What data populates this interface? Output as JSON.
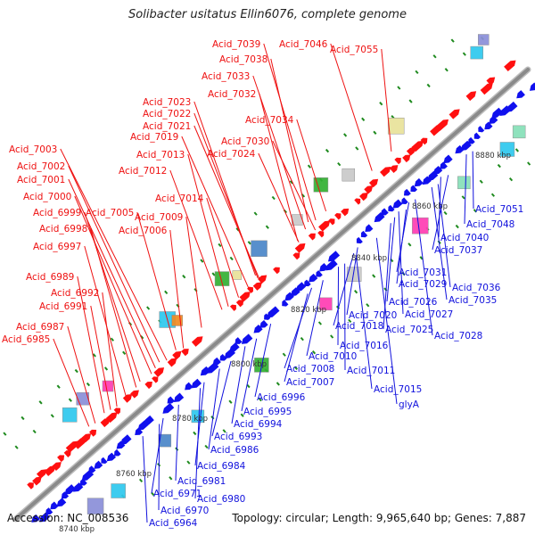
{
  "title": "Solibacter usitatus Ellin6076, complete genome",
  "footer": {
    "accession": "Accession: NC_008536",
    "stats": "Topology: circular; Length: 9,965,640 bp; Genes: 7,887"
  },
  "colors": {
    "forward_label": "#ee1111",
    "reverse_label": "#1111dd",
    "backbone": "#8a8a8a",
    "tick_marks": "#1e8a1e"
  },
  "scale_labels": [
    "8740 kbp",
    "8760 kbp",
    "8780 kbp",
    "8800 kbp",
    "8820 kbp",
    "8840 kbp",
    "8860 kbp",
    "8880 kbp"
  ],
  "forward_genes": [
    "Acid_7039",
    "Acid_7046",
    "Acid_7055",
    "Acid_7038",
    "Acid_7033",
    "Acid_7032",
    "Acid_7023",
    "Acid_7034",
    "Acid_7022",
    "Acid_7021",
    "Acid_7019",
    "Acid_7030",
    "Acid_7013",
    "Acid_7024",
    "Acid_7003",
    "Acid_7012",
    "Acid_7002",
    "Acid_7001",
    "Acid_7000",
    "Acid_7014",
    "Acid_6999",
    "Acid_7005",
    "Acid_7009",
    "Acid_6998",
    "Acid_7006",
    "Acid_6997",
    "Acid_6989",
    "Acid_6992",
    "Acid_6991",
    "Acid_6987",
    "Acid_6985"
  ],
  "reverse_genes": [
    "Acid_7051",
    "Acid_7048",
    "Acid_7040",
    "Acid_7037",
    "Acid_7031",
    "Acid_7036",
    "Acid_7029",
    "Acid_7026",
    "Acid_7035",
    "Acid_7027",
    "Acid_7020",
    "Acid_7018",
    "Acid_7025",
    "Acid_7028",
    "Acid_7016",
    "Acid_7010",
    "Acid_7008",
    "Acid_7011",
    "Acid_7007",
    "Acid_7015",
    "Acid_6996",
    "glyA",
    "Acid_6995",
    "Acid_6994",
    "Acid_6993",
    "Acid_6986",
    "Acid_6984",
    "Acid_6981",
    "Acid_6980",
    "Acid_6971",
    "Acid_6970",
    "Acid_6964"
  ]
}
